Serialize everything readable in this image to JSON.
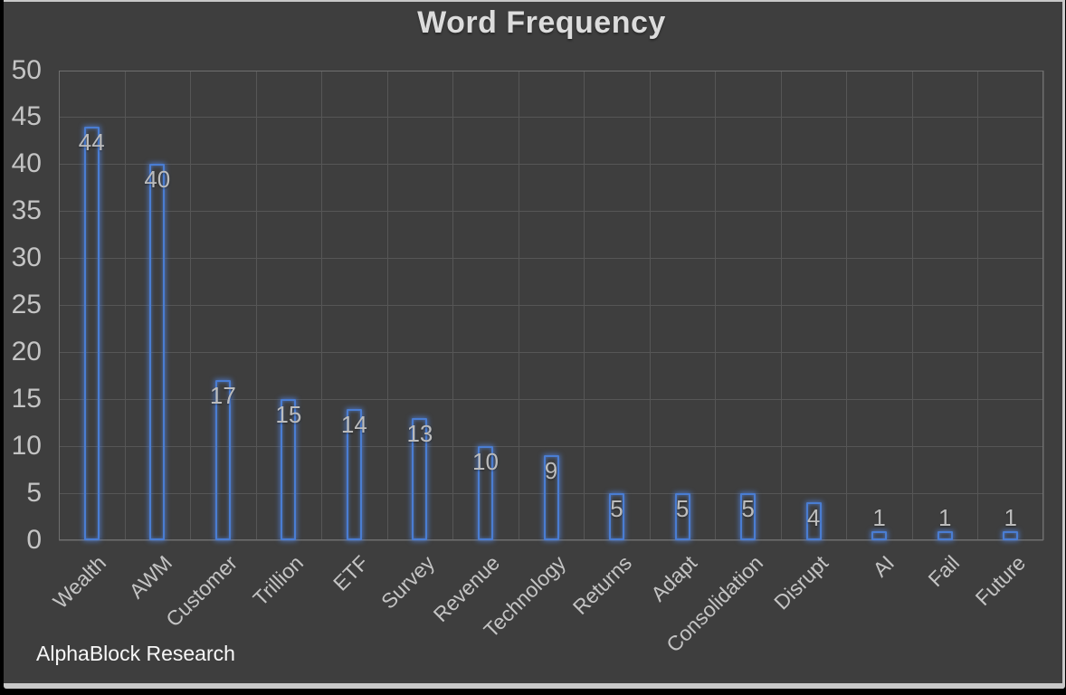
{
  "title": "Word Frequency",
  "watermark": "AlphaBlock Research",
  "colors": {
    "outer_background": "#000000",
    "window_frame": "#c8c8c8",
    "chart_background": "#3e3e3e",
    "gridline": "#565656",
    "plot_border": "#6f6f6f",
    "tick_label": "#c4c4c4",
    "value_label": "#bcbcbc",
    "title": "#dcdcdc",
    "watermark": "#f7f7f7",
    "bar_stroke": "#4a7dd2",
    "bar_glow": "rgba(80,130,220,0.75)"
  },
  "chart_data": {
    "type": "bar",
    "title": "Word Frequency",
    "categories": [
      "Wealth",
      "AWM",
      "Customer",
      "Trillion",
      "ETF",
      "Survey",
      "Revenue",
      "Technology",
      "Returns",
      "Adapt",
      "Consolidation",
      "Disrupt",
      "AI",
      "Fail",
      "Future"
    ],
    "values": [
      44,
      40,
      17,
      15,
      14,
      13,
      10,
      9,
      5,
      5,
      5,
      4,
      1,
      1,
      1
    ],
    "xlabel": "",
    "ylabel": "",
    "ylim": [
      0,
      50
    ],
    "yticks": [
      0,
      5,
      10,
      15,
      20,
      25,
      30,
      35,
      40,
      45,
      50
    ],
    "grid": true,
    "legend": false,
    "bar_fill": "none",
    "value_labels_shown": true,
    "x_label_rotation_deg": 45
  }
}
